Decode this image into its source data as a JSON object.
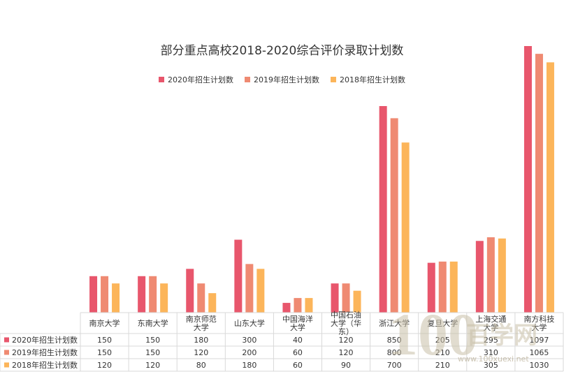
{
  "chart_data": {
    "type": "bar",
    "title": "部分重点高校2018-2020综合评价录取计划数",
    "categories": [
      "南京大学",
      "东南大学",
      "南京师范大学",
      "山东大学",
      "中国海洋大学",
      "中国石油大学（华东）",
      "浙江大学",
      "复旦大学",
      "上海交通大学",
      "南方科技大学"
    ],
    "series": [
      {
        "name": "2020年招生计划数",
        "color": "#e8566c",
        "values": [
          150,
          150,
          180,
          300,
          40,
          120,
          850,
          205,
          295,
          1097
        ]
      },
      {
        "name": "2019年招生计划数",
        "color": "#ef8a72",
        "values": [
          150,
          150,
          120,
          200,
          60,
          120,
          800,
          210,
          310,
          1065
        ]
      },
      {
        "name": "2018年招生计划数",
        "color": "#fcb55a",
        "values": [
          120,
          120,
          80,
          180,
          60,
          90,
          700,
          210,
          305,
          1030
        ]
      }
    ],
    "ylim": [
      0,
      1097
    ],
    "grid": false,
    "legend_position": "top",
    "data_table": true
  },
  "watermark": {
    "big": "100",
    "cn": "百学网",
    "url": "www.100xuexi.net"
  }
}
